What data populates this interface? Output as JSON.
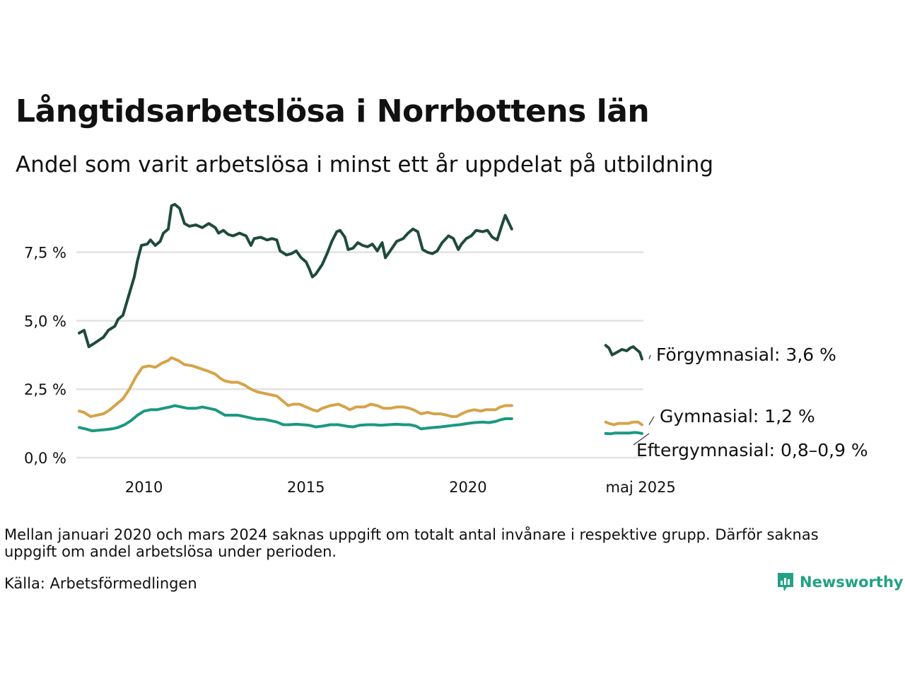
{
  "header": {
    "title": "Långtidsarbetslösa i Norrbottens län",
    "subtitle": "Andel som varit arbetslösa i minst ett år uppdelat på utbildning"
  },
  "footer": {
    "note": "Mellan januari 2020 och mars 2024 saknas uppgift om totalt antal invånare i respektive grupp. Därför saknas uppgift om andel arbetslösa under perioden.",
    "source": "Källa: Arbetsförmedlingen",
    "brand": "Newsworthy"
  },
  "chart_data": {
    "type": "line",
    "title": "",
    "xlabel": "",
    "ylabel": "",
    "ylim": [
      0,
      9.3
    ],
    "y_ticks": [
      0,
      2.5,
      5.0,
      7.5
    ],
    "y_tick_labels": [
      "0,0 %",
      "2,5 %",
      "5,0 %",
      "7,5 %"
    ],
    "x_ticks": [
      2010,
      2015,
      2020,
      2025.33
    ],
    "x_tick_labels": [
      "2010",
      "2015",
      "2020",
      "maj 2025"
    ],
    "grid": true,
    "legend": "none",
    "gap": {
      "from": 2021.0,
      "to": 2024.25
    },
    "series": [
      {
        "color": "#1f4a3e",
        "end_label": "Förgymnasial: 3,6 %",
        "points": [
          [
            2008.0,
            4.55
          ],
          [
            2008.15,
            4.65
          ],
          [
            2008.3,
            4.05
          ],
          [
            2008.5,
            4.2
          ],
          [
            2008.75,
            4.4
          ],
          [
            2008.9,
            4.65
          ],
          [
            2009.1,
            4.8
          ],
          [
            2009.2,
            5.05
          ],
          [
            2009.35,
            5.2
          ],
          [
            2009.5,
            5.8
          ],
          [
            2009.7,
            6.6
          ],
          [
            2009.8,
            7.2
          ],
          [
            2009.92,
            7.75
          ],
          [
            2010.1,
            7.8
          ],
          [
            2010.2,
            7.95
          ],
          [
            2010.35,
            7.75
          ],
          [
            2010.5,
            7.9
          ],
          [
            2010.6,
            8.2
          ],
          [
            2010.75,
            8.35
          ],
          [
            2010.85,
            9.2
          ],
          [
            2010.95,
            9.25
          ],
          [
            2011.1,
            9.1
          ],
          [
            2011.25,
            8.55
          ],
          [
            2011.4,
            8.45
          ],
          [
            2011.6,
            8.5
          ],
          [
            2011.8,
            8.4
          ],
          [
            2012.0,
            8.55
          ],
          [
            2012.2,
            8.4
          ],
          [
            2012.3,
            8.2
          ],
          [
            2012.45,
            8.3
          ],
          [
            2012.6,
            8.15
          ],
          [
            2012.75,
            8.1
          ],
          [
            2012.95,
            8.2
          ],
          [
            2013.15,
            8.1
          ],
          [
            2013.3,
            7.75
          ],
          [
            2013.4,
            8.0
          ],
          [
            2013.6,
            8.05
          ],
          [
            2013.8,
            7.95
          ],
          [
            2013.95,
            8.0
          ],
          [
            2014.1,
            7.95
          ],
          [
            2014.2,
            7.55
          ],
          [
            2014.4,
            7.4
          ],
          [
            2014.55,
            7.45
          ],
          [
            2014.7,
            7.55
          ],
          [
            2014.85,
            7.3
          ],
          [
            2015.0,
            7.15
          ],
          [
            2015.1,
            6.9
          ],
          [
            2015.2,
            6.6
          ],
          [
            2015.3,
            6.7
          ],
          [
            2015.5,
            7.05
          ],
          [
            2015.65,
            7.45
          ],
          [
            2015.8,
            7.9
          ],
          [
            2015.95,
            8.25
          ],
          [
            2016.05,
            8.3
          ],
          [
            2016.2,
            8.05
          ],
          [
            2016.3,
            7.6
          ],
          [
            2016.45,
            7.65
          ],
          [
            2016.6,
            7.85
          ],
          [
            2016.75,
            7.75
          ],
          [
            2016.9,
            7.7
          ],
          [
            2017.05,
            7.8
          ],
          [
            2017.2,
            7.55
          ],
          [
            2017.35,
            7.85
          ],
          [
            2017.45,
            7.3
          ],
          [
            2017.6,
            7.55
          ],
          [
            2017.8,
            7.9
          ],
          [
            2018.0,
            8.0
          ],
          [
            2018.15,
            8.2
          ],
          [
            2018.3,
            8.35
          ],
          [
            2018.45,
            8.25
          ],
          [
            2018.6,
            7.6
          ],
          [
            2018.75,
            7.5
          ],
          [
            2018.9,
            7.45
          ],
          [
            2019.05,
            7.55
          ],
          [
            2019.2,
            7.85
          ],
          [
            2019.4,
            8.1
          ],
          [
            2019.55,
            8.0
          ],
          [
            2019.7,
            7.6
          ],
          [
            2019.8,
            7.8
          ],
          [
            2019.95,
            8.0
          ],
          [
            2020.1,
            8.1
          ],
          [
            2020.25,
            8.3
          ],
          [
            2020.45,
            8.25
          ],
          [
            2020.6,
            8.3
          ],
          [
            2020.75,
            8.05
          ],
          [
            2020.9,
            7.95
          ],
          [
            2021.05,
            8.5
          ],
          [
            2021.15,
            8.85
          ],
          [
            2021.35,
            8.35
          ],
          [
            2024.25,
            4.1
          ],
          [
            2024.35,
            4.0
          ],
          [
            2024.45,
            3.75
          ],
          [
            2024.6,
            3.85
          ],
          [
            2024.75,
            3.95
          ],
          [
            2024.9,
            3.9
          ],
          [
            2025.0,
            4.0
          ],
          [
            2025.1,
            4.05
          ],
          [
            2025.2,
            3.95
          ],
          [
            2025.3,
            3.85
          ],
          [
            2025.37,
            3.6
          ]
        ]
      },
      {
        "color": "#d5a349",
        "end_label": "Gymnasial: 1,2 %",
        "points": [
          [
            2008.0,
            1.7
          ],
          [
            2008.15,
            1.65
          ],
          [
            2008.35,
            1.5
          ],
          [
            2008.55,
            1.55
          ],
          [
            2008.75,
            1.6
          ],
          [
            2008.95,
            1.75
          ],
          [
            2009.15,
            1.95
          ],
          [
            2009.35,
            2.15
          ],
          [
            2009.55,
            2.5
          ],
          [
            2009.75,
            2.95
          ],
          [
            2009.95,
            3.3
          ],
          [
            2010.15,
            3.35
          ],
          [
            2010.35,
            3.3
          ],
          [
            2010.55,
            3.45
          ],
          [
            2010.75,
            3.55
          ],
          [
            2010.85,
            3.65
          ],
          [
            2011.05,
            3.55
          ],
          [
            2011.25,
            3.4
          ],
          [
            2011.5,
            3.35
          ],
          [
            2011.75,
            3.25
          ],
          [
            2012.0,
            3.15
          ],
          [
            2012.2,
            3.05
          ],
          [
            2012.35,
            2.9
          ],
          [
            2012.5,
            2.8
          ],
          [
            2012.7,
            2.75
          ],
          [
            2012.9,
            2.75
          ],
          [
            2013.1,
            2.65
          ],
          [
            2013.3,
            2.5
          ],
          [
            2013.5,
            2.4
          ],
          [
            2013.7,
            2.35
          ],
          [
            2013.9,
            2.3
          ],
          [
            2014.1,
            2.25
          ],
          [
            2014.3,
            2.05
          ],
          [
            2014.45,
            1.9
          ],
          [
            2014.6,
            1.95
          ],
          [
            2014.8,
            1.95
          ],
          [
            2015.0,
            1.85
          ],
          [
            2015.2,
            1.75
          ],
          [
            2015.35,
            1.7
          ],
          [
            2015.5,
            1.8
          ],
          [
            2015.75,
            1.9
          ],
          [
            2016.0,
            1.95
          ],
          [
            2016.2,
            1.85
          ],
          [
            2016.35,
            1.75
          ],
          [
            2016.55,
            1.85
          ],
          [
            2016.8,
            1.85
          ],
          [
            2017.0,
            1.95
          ],
          [
            2017.2,
            1.9
          ],
          [
            2017.4,
            1.8
          ],
          [
            2017.6,
            1.8
          ],
          [
            2017.8,
            1.85
          ],
          [
            2018.0,
            1.85
          ],
          [
            2018.2,
            1.8
          ],
          [
            2018.4,
            1.7
          ],
          [
            2018.55,
            1.6
          ],
          [
            2018.75,
            1.65
          ],
          [
            2018.95,
            1.6
          ],
          [
            2019.15,
            1.6
          ],
          [
            2019.35,
            1.55
          ],
          [
            2019.5,
            1.5
          ],
          [
            2019.65,
            1.5
          ],
          [
            2019.8,
            1.6
          ],
          [
            2020.0,
            1.7
          ],
          [
            2020.2,
            1.75
          ],
          [
            2020.4,
            1.7
          ],
          [
            2020.55,
            1.75
          ],
          [
            2020.7,
            1.75
          ],
          [
            2020.85,
            1.75
          ],
          [
            2021.0,
            1.85
          ],
          [
            2021.15,
            1.9
          ],
          [
            2021.35,
            1.9
          ],
          [
            2024.25,
            1.3
          ],
          [
            2024.35,
            1.25
          ],
          [
            2024.5,
            1.2
          ],
          [
            2024.65,
            1.25
          ],
          [
            2024.8,
            1.25
          ],
          [
            2024.95,
            1.25
          ],
          [
            2025.1,
            1.3
          ],
          [
            2025.25,
            1.3
          ],
          [
            2025.37,
            1.2
          ]
        ]
      },
      {
        "color": "#1b9882",
        "end_label": "Eftergymnasial: 0,8–0,9 %",
        "points": [
          [
            2008.0,
            1.1
          ],
          [
            2008.2,
            1.05
          ],
          [
            2008.4,
            0.98
          ],
          [
            2008.6,
            1.0
          ],
          [
            2008.8,
            1.02
          ],
          [
            2009.0,
            1.05
          ],
          [
            2009.2,
            1.1
          ],
          [
            2009.4,
            1.2
          ],
          [
            2009.6,
            1.35
          ],
          [
            2009.8,
            1.55
          ],
          [
            2010.0,
            1.7
          ],
          [
            2010.2,
            1.75
          ],
          [
            2010.4,
            1.75
          ],
          [
            2010.6,
            1.8
          ],
          [
            2010.8,
            1.85
          ],
          [
            2010.95,
            1.9
          ],
          [
            2011.15,
            1.85
          ],
          [
            2011.35,
            1.8
          ],
          [
            2011.6,
            1.8
          ],
          [
            2011.8,
            1.85
          ],
          [
            2012.0,
            1.8
          ],
          [
            2012.2,
            1.75
          ],
          [
            2012.35,
            1.65
          ],
          [
            2012.5,
            1.55
          ],
          [
            2012.7,
            1.55
          ],
          [
            2012.9,
            1.55
          ],
          [
            2013.1,
            1.5
          ],
          [
            2013.3,
            1.45
          ],
          [
            2013.5,
            1.4
          ],
          [
            2013.7,
            1.4
          ],
          [
            2013.9,
            1.35
          ],
          [
            2014.1,
            1.3
          ],
          [
            2014.3,
            1.2
          ],
          [
            2014.5,
            1.2
          ],
          [
            2014.7,
            1.22
          ],
          [
            2014.9,
            1.2
          ],
          [
            2015.1,
            1.18
          ],
          [
            2015.3,
            1.12
          ],
          [
            2015.5,
            1.15
          ],
          [
            2015.75,
            1.2
          ],
          [
            2016.0,
            1.2
          ],
          [
            2016.25,
            1.15
          ],
          [
            2016.45,
            1.12
          ],
          [
            2016.65,
            1.18
          ],
          [
            2016.9,
            1.2
          ],
          [
            2017.1,
            1.2
          ],
          [
            2017.3,
            1.18
          ],
          [
            2017.55,
            1.2
          ],
          [
            2017.8,
            1.22
          ],
          [
            2018.0,
            1.2
          ],
          [
            2018.2,
            1.2
          ],
          [
            2018.4,
            1.15
          ],
          [
            2018.55,
            1.05
          ],
          [
            2018.75,
            1.08
          ],
          [
            2018.95,
            1.1
          ],
          [
            2019.15,
            1.12
          ],
          [
            2019.35,
            1.15
          ],
          [
            2019.55,
            1.18
          ],
          [
            2019.75,
            1.2
          ],
          [
            2020.0,
            1.25
          ],
          [
            2020.2,
            1.28
          ],
          [
            2020.45,
            1.3
          ],
          [
            2020.65,
            1.28
          ],
          [
            2020.85,
            1.32
          ],
          [
            2021.0,
            1.38
          ],
          [
            2021.15,
            1.42
          ],
          [
            2021.35,
            1.42
          ],
          [
            2024.25,
            0.88
          ],
          [
            2024.4,
            0.87
          ],
          [
            2024.55,
            0.9
          ],
          [
            2024.7,
            0.9
          ],
          [
            2024.85,
            0.9
          ],
          [
            2025.0,
            0.9
          ],
          [
            2025.15,
            0.92
          ],
          [
            2025.3,
            0.9
          ],
          [
            2025.37,
            0.88
          ]
        ]
      }
    ]
  }
}
